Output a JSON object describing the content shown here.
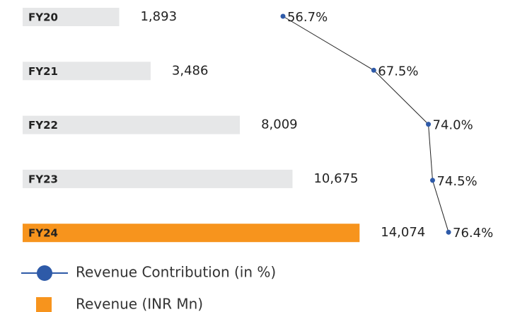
{
  "chart_data": {
    "type": "bar",
    "orientation": "horizontal",
    "categories": [
      "FY20",
      "FY21",
      "FY22",
      "FY23",
      "FY24"
    ],
    "xlim": [
      -3000,
      16000
    ],
    "x2lim": [
      50,
      80
    ],
    "series": [
      {
        "name": "Revenue (INR Mn)",
        "type": "bar",
        "color": "#f7941d",
        "colors": [
          "#e6e7e8",
          "#e6e7e8",
          "#e6e7e8",
          "#e6e7e8",
          "#f7941d"
        ],
        "values": [
          1893,
          3486,
          8009,
          10675,
          14074
        ],
        "value_labels": [
          "1,893",
          "3,486",
          "8,009",
          "10,675",
          "14,074"
        ]
      },
      {
        "name": "Revenue Contribution (in %)",
        "type": "line",
        "axis": "x2",
        "color": "#2e5aa8",
        "values": [
          56.7,
          67.5,
          74.0,
          74.5,
          76.4
        ],
        "value_labels": [
          "56.7%",
          "67.5%",
          "74.0%",
          "74.5%",
          "76.4%"
        ]
      }
    ]
  }
}
